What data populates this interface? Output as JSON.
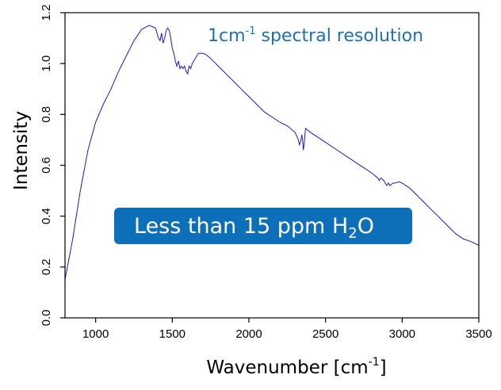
{
  "chart_data": {
    "type": "line",
    "xlabel_main": "Wavenumber [cm",
    "xlabel_sup": "-1",
    "xlabel_end": "]",
    "ylabel": "Intensity",
    "xlim": [
      800,
      3500
    ],
    "ylim": [
      0.0,
      1.2
    ],
    "x_ticks": [
      1000,
      1500,
      2000,
      2500,
      3000,
      3500
    ],
    "y_ticks": [
      "0.0",
      "0.2",
      "0.4",
      "0.6",
      "0.8",
      "1.0",
      "1.2"
    ],
    "grid": false,
    "line_color": "#1a1acc",
    "annotation": {
      "prefix": "1cm",
      "sup": "-1",
      "suffix": " spectral resolution",
      "color": "#1f6fb4"
    },
    "badge": {
      "prefix": "Less than 15 ppm H",
      "sub": "2",
      "suffix": "O",
      "color": "#0d6fb8"
    },
    "series": [
      {
        "x": [
          800,
          850,
          900,
          950,
          1000,
          1050,
          1100,
          1150,
          1200,
          1250,
          1300,
          1350,
          1390,
          1410,
          1420,
          1430,
          1440,
          1450,
          1460,
          1470,
          1480,
          1490,
          1500,
          1510,
          1520,
          1530,
          1540,
          1550,
          1560,
          1570,
          1580,
          1590,
          1600,
          1610,
          1620,
          1630,
          1640,
          1650,
          1660,
          1670,
          1680,
          1700,
          1720,
          1750,
          1800,
          1850,
          1900,
          1950,
          2000,
          2050,
          2100,
          2150,
          2200,
          2250,
          2300,
          2320,
          2330,
          2340,
          2345,
          2350,
          2355,
          2360,
          2365,
          2370,
          2380,
          2400,
          2450,
          2500,
          2550,
          2600,
          2650,
          2700,
          2750,
          2800,
          2820,
          2840,
          2850,
          2860,
          2870,
          2880,
          2900,
          2910,
          2920,
          2930,
          2940,
          2950,
          2980,
          3000,
          3050,
          3100,
          3150,
          3200,
          3250,
          3300,
          3350,
          3400,
          3450,
          3500
        ],
        "y": [
          0.15,
          0.31,
          0.5,
          0.66,
          0.77,
          0.84,
          0.9,
          0.97,
          1.03,
          1.09,
          1.135,
          1.15,
          1.14,
          1.1,
          1.09,
          1.12,
          1.08,
          1.1,
          1.13,
          1.14,
          1.13,
          1.1,
          1.06,
          1.04,
          1.01,
          0.99,
          1.01,
          0.98,
          0.99,
          0.98,
          0.99,
          0.97,
          0.96,
          0.99,
          0.98,
          1.0,
          1.01,
          1.02,
          1.03,
          1.04,
          1.04,
          1.04,
          1.035,
          1.02,
          0.99,
          0.96,
          0.93,
          0.9,
          0.87,
          0.84,
          0.81,
          0.79,
          0.77,
          0.755,
          0.73,
          0.705,
          0.68,
          0.7,
          0.72,
          0.7,
          0.66,
          0.68,
          0.72,
          0.745,
          0.74,
          0.73,
          0.71,
          0.69,
          0.67,
          0.65,
          0.63,
          0.61,
          0.59,
          0.57,
          0.56,
          0.55,
          0.54,
          0.55,
          0.545,
          0.54,
          0.52,
          0.53,
          0.52,
          0.525,
          0.53,
          0.53,
          0.535,
          0.53,
          0.51,
          0.48,
          0.45,
          0.42,
          0.39,
          0.36,
          0.33,
          0.31,
          0.3,
          0.285
        ]
      }
    ]
  }
}
